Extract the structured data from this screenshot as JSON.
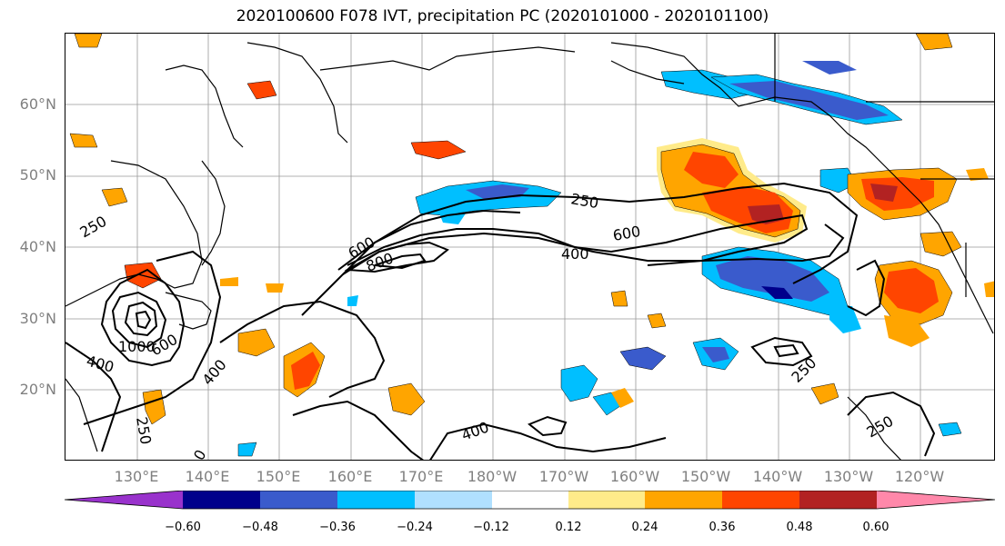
{
  "title": "2020100600 F078 IVT, precipitation PC (2020101000 - 2020101100)",
  "lat_labels": [
    "60°N",
    "50°N",
    "40°N",
    "30°N",
    "20°N"
  ],
  "lon_labels": [
    "130°E",
    "140°E",
    "150°E",
    "160°E",
    "170°E",
    "180°W",
    "170°W",
    "160°W",
    "150°W",
    "140°W",
    "130°W",
    "120°W"
  ],
  "contour_labels": [
    "250",
    "600",
    "400",
    "600",
    "800",
    "400",
    "1000",
    "600",
    "400",
    "250",
    "400",
    "250",
    "250",
    "0"
  ],
  "colorbar": {
    "ticks": [
      "−0.60",
      "−0.48",
      "−0.36",
      "−0.24",
      "−0.12",
      "0.12",
      "0.24",
      "0.36",
      "0.48",
      "0.60"
    ],
    "colors": [
      "#9932CC",
      "#00008B",
      "#3A5BCC",
      "#00BFFF",
      "#B0E0FF",
      "#FFFFFF",
      "#FFEB8A",
      "#FFA500",
      "#FF4500",
      "#B22222",
      "#FF88AA"
    ]
  },
  "colors": {
    "neg_strong": "#3A5BCC",
    "neg_mid": "#00BFFF",
    "neg_weak": "#B0E0FF",
    "pos_weak": "#FFEB8A",
    "pos_mid": "#FFA500",
    "pos_strong": "#FF4500",
    "pos_max": "#B22222",
    "neg_max": "#00008B"
  }
}
